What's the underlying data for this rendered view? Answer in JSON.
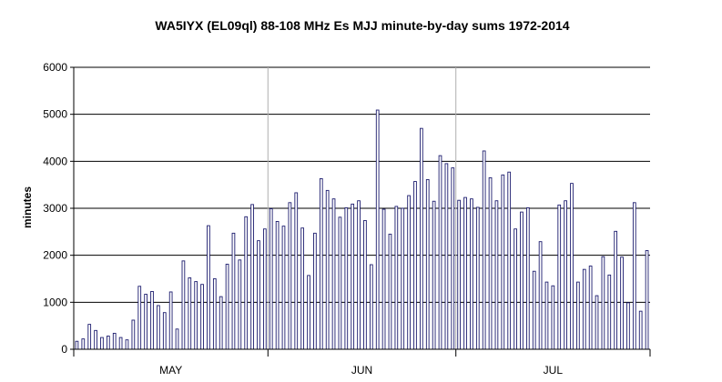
{
  "chart_data": {
    "type": "bar",
    "title": "WA5IYX (EL09ql) 88-108 MHz Es MJJ minute-by-day sums 1972-2014",
    "xlabel": "",
    "ylabel": "minutes",
    "ylim": [
      0,
      6000
    ],
    "yticks": [
      "0",
      "1000",
      "2000",
      "3000",
      "4000",
      "5000",
      "6000"
    ],
    "months": [
      "MAY",
      "JUN",
      "JUL"
    ],
    "grid": true,
    "legend": "none",
    "bar_color": "#1c1c6e",
    "values": [
      170,
      220,
      530,
      400,
      250,
      280,
      340,
      250,
      200,
      620,
      1340,
      1170,
      1230,
      930,
      780,
      1220,
      430,
      1880,
      1520,
      1440,
      1380,
      2630,
      1500,
      1120,
      1810,
      2470,
      1900,
      2820,
      3080,
      2310,
      2560,
      2990,
      2720,
      2620,
      3120,
      3330,
      2580,
      1570,
      2470,
      3630,
      3380,
      3200,
      2810,
      3010,
      3090,
      3160,
      2740,
      1800,
      5090,
      2980,
      2450,
      3040,
      3000,
      3270,
      3570,
      4700,
      3610,
      3150,
      4120,
      3950,
      3860,
      3170,
      3230,
      3200,
      3020,
      4220,
      3650,
      3160,
      3710,
      3770,
      2560,
      2920,
      3010,
      1660,
      2290,
      1430,
      1350,
      3070,
      3160,
      3530,
      1430,
      1700,
      1770,
      1140,
      1970,
      1580,
      2510,
      1960,
      990,
      3120,
      810,
      2100
    ]
  }
}
